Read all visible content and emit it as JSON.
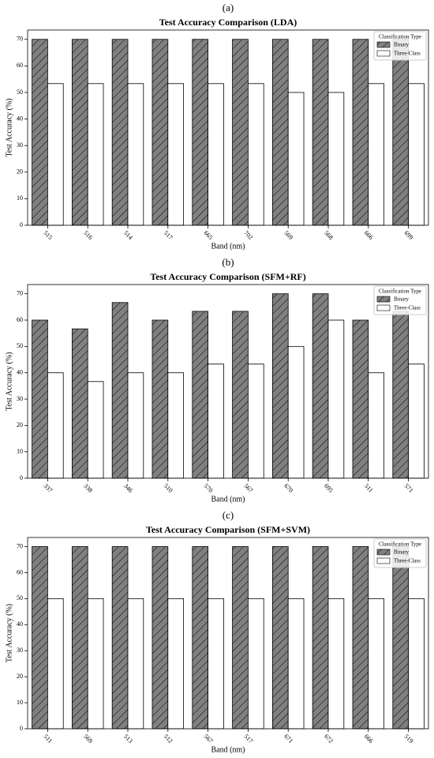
{
  "chart_data": [
    {
      "type": "bar",
      "panel_label": "(a)",
      "title": "Test Accuracy Comparison (LDA)",
      "x_label": "Band (nm)",
      "y_label": "Test Accuracy (%)",
      "categories": [
        "515",
        "516",
        "514",
        "517",
        "665",
        "702",
        "569",
        "568",
        "666",
        "699"
      ],
      "series": [
        {
          "name": "Binary",
          "color": "#808080",
          "hatch": true,
          "values": [
            70,
            70,
            70,
            70,
            70,
            70,
            70,
            70,
            70,
            70
          ]
        },
        {
          "name": "Three-Class",
          "color": "#ffffff",
          "hatch": false,
          "values": [
            53.33,
            53.33,
            53.33,
            53.33,
            53.33,
            53.33,
            50,
            50,
            53.33,
            53.33
          ]
        }
      ],
      "ylim": [
        0,
        73.5
      ],
      "yticks": [
        0,
        10,
        20,
        30,
        40,
        50,
        60,
        70
      ],
      "legend_title": "Classification Type",
      "legend": "upper right"
    },
    {
      "type": "bar",
      "panel_label": "(b)",
      "title": "Test Accuracy Comparison (SFM+RF)",
      "x_label": "Band (nm)",
      "y_label": "Test Accuracy (%)",
      "categories": [
        "337",
        "338",
        "346",
        "510",
        "570",
        "567",
        "670",
        "695",
        "511",
        "571"
      ],
      "series": [
        {
          "name": "Binary",
          "color": "#808080",
          "hatch": true,
          "values": [
            60,
            56.67,
            66.67,
            60,
            63.33,
            63.33,
            70,
            70,
            60,
            63.33
          ]
        },
        {
          "name": "Three-Class",
          "color": "#ffffff",
          "hatch": false,
          "values": [
            40,
            36.67,
            40,
            40,
            43.33,
            43.33,
            50,
            60,
            40,
            43.33
          ]
        }
      ],
      "ylim": [
        0,
        73.5
      ],
      "yticks": [
        0,
        10,
        20,
        30,
        40,
        50,
        60,
        70
      ],
      "legend_title": "Classification Type",
      "legend": "upper right"
    },
    {
      "type": "bar",
      "panel_label": "(c)",
      "title": "Test Accuracy Comparison (SFM+SVM)",
      "x_label": "Band (nm)",
      "y_label": "Test Accuracy (%)",
      "categories": [
        "511",
        "569",
        "513",
        "512",
        "567",
        "517",
        "671",
        "672",
        "666",
        "519"
      ],
      "series": [
        {
          "name": "Binary",
          "color": "#808080",
          "hatch": true,
          "values": [
            70,
            70,
            70,
            70,
            70,
            70,
            70,
            70,
            70,
            70
          ]
        },
        {
          "name": "Three-Class",
          "color": "#ffffff",
          "hatch": false,
          "values": [
            50,
            50,
            50,
            50,
            50,
            50,
            50,
            50,
            50,
            50
          ]
        }
      ],
      "ylim": [
        0,
        73.5
      ],
      "yticks": [
        0,
        10,
        20,
        30,
        40,
        50,
        60,
        70
      ],
      "legend_title": "Classification Type",
      "legend": "upper right"
    }
  ]
}
